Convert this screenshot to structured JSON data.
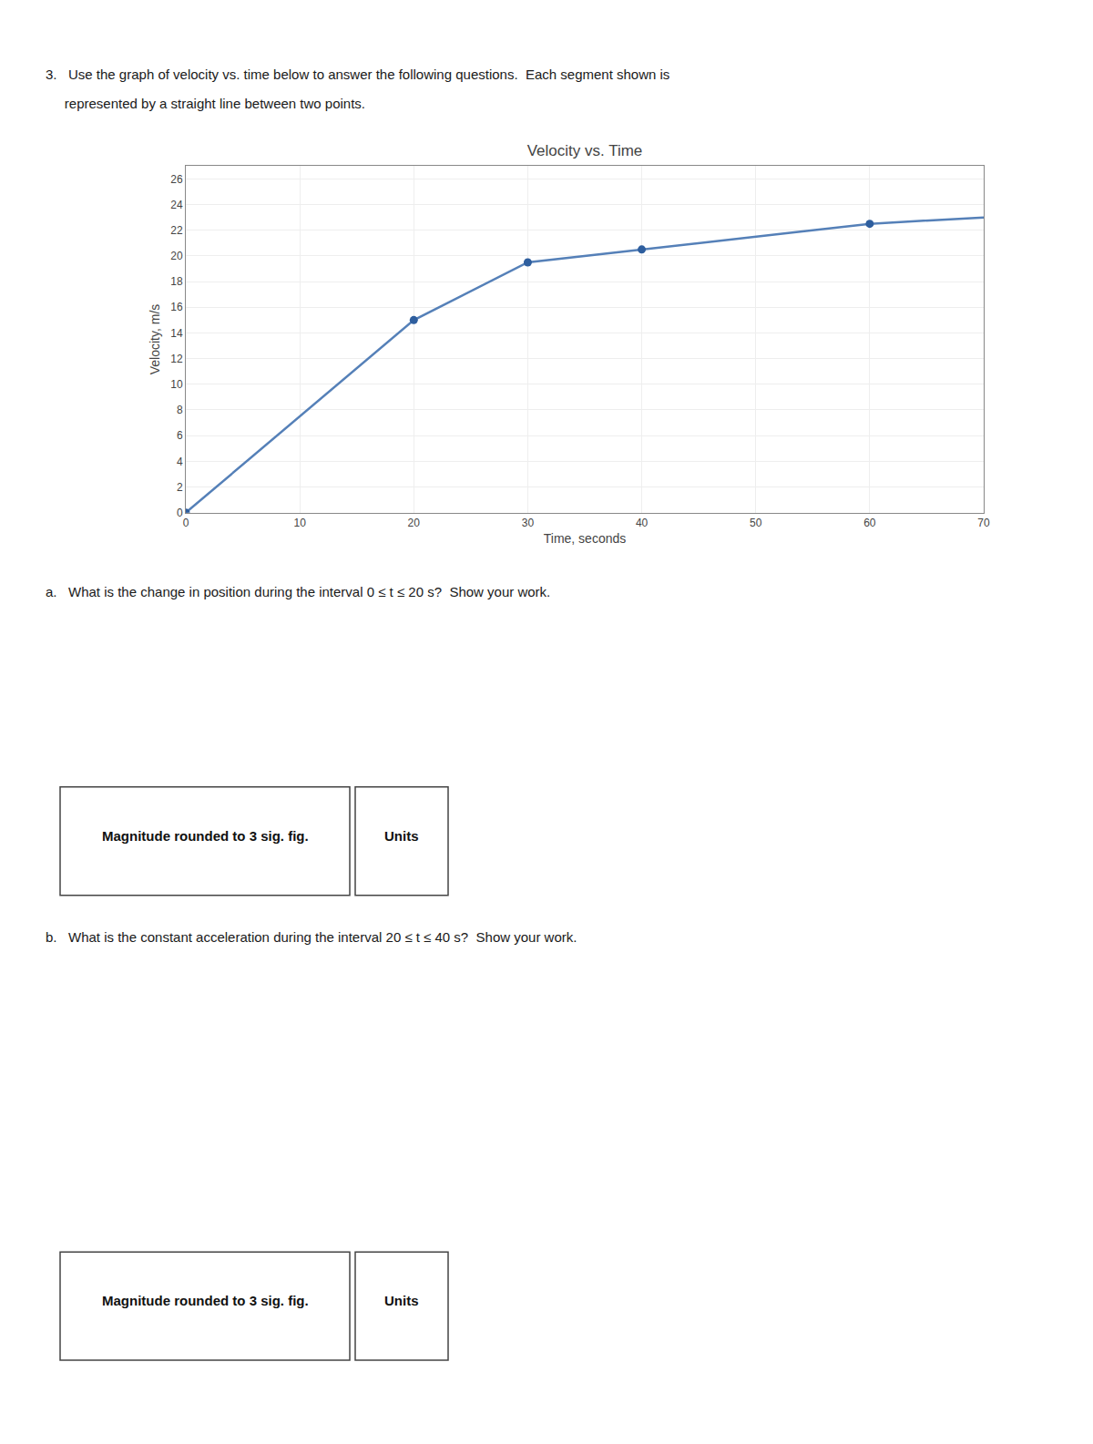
{
  "chart_data": {
    "type": "line",
    "title": "Velocity vs. Time",
    "xlabel": "Time, seconds",
    "ylabel": "Velocity, m/s",
    "series": [
      {
        "type": "line",
        "color": "#5580b8",
        "x": [
          0,
          20,
          30,
          40,
          60,
          70
        ],
        "values": [
          0,
          15,
          19.5,
          20.5,
          22.5,
          23.0
        ]
      },
      {
        "type": "scatter",
        "marker": "circle",
        "color": "#2e5e9e",
        "x": [
          0,
          20,
          30,
          40,
          60
        ],
        "values": [
          0,
          15,
          19.5,
          20.5,
          22.5
        ]
      }
    ],
    "xlim": [
      0,
      70
    ],
    "xticks": [
      0,
      10,
      20,
      30,
      40,
      50,
      60,
      70
    ],
    "ylim": [
      0,
      27
    ],
    "yticks": [
      0,
      2,
      4,
      6,
      8,
      10,
      12,
      14,
      16,
      18,
      20,
      22,
      24,
      26
    ],
    "grid": true,
    "annotations": [
      "3.   Use the graph of velocity vs. time below to answer the following questions.  Each segment shown is",
      "     represented by a straight line between two points.",
      "a.   What is the change in position during the interval 0 ≤ t ≤ 20 s?  Show your work.",
      "Magnitude rounded to 3 sig. fig.",
      "Units",
      "b.   What is the constant acceleration during the interval 20 ≤ t ≤ 40 s?  Show your work.",
      "Magnitude rounded to 3 sig. fig.",
      "Units"
    ]
  }
}
